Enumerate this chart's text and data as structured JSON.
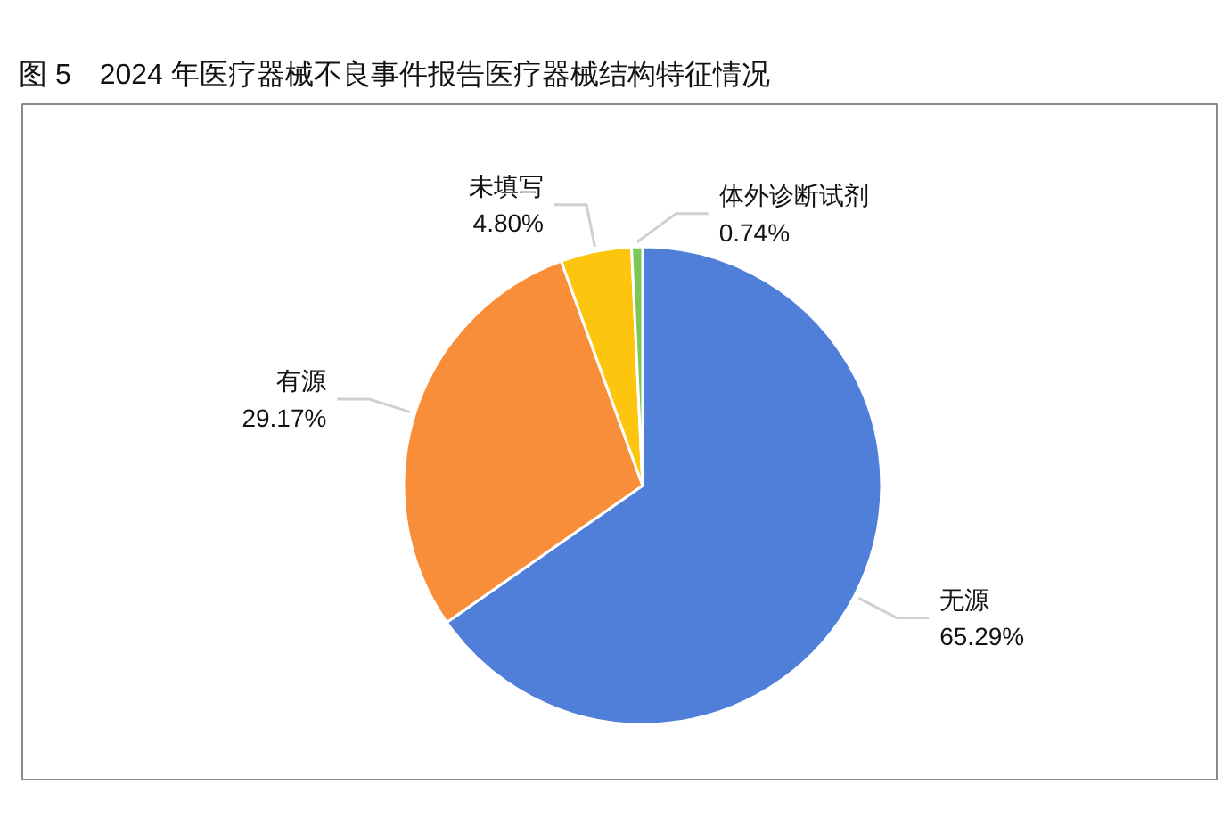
{
  "chart_data": {
    "type": "pie",
    "title": "图 5　2024 年医疗器械不良事件报告医疗器械结构特征情况",
    "categories": [
      "无源",
      "有源",
      "未填写",
      "体外诊断试剂"
    ],
    "values": [
      65.29,
      29.17,
      4.8,
      0.74
    ],
    "colors": [
      "#507fd9",
      "#f98e3a",
      "#fec50e",
      "#7cc756"
    ],
    "value_labels": [
      "65.29%",
      "29.17%",
      "4.80%",
      "0.74%"
    ]
  }
}
